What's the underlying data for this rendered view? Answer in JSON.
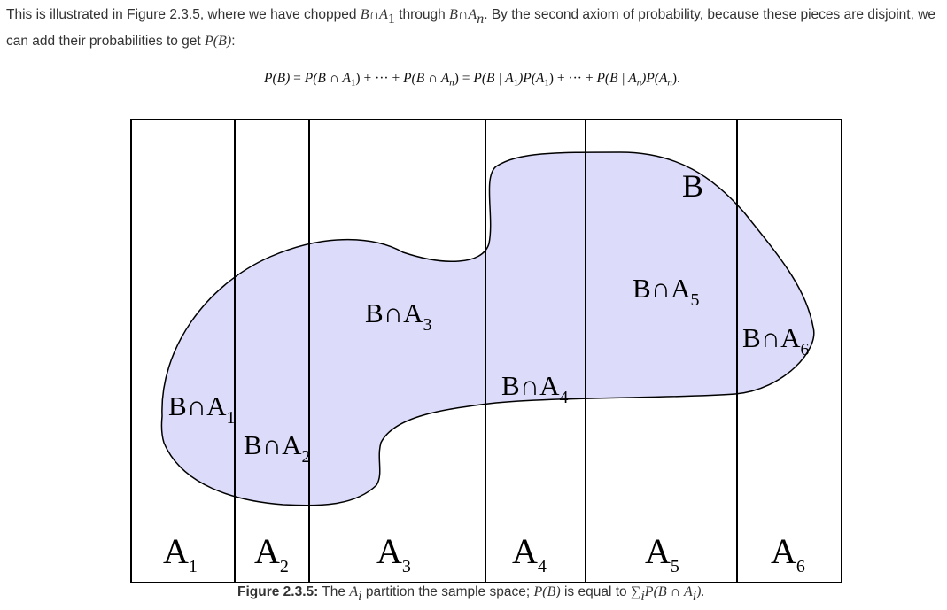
{
  "paragraph": {
    "t1": "This is illustrated in Figure 2.3.5, where we have chopped ",
    "b": "B",
    "cap": "∩",
    "a": "A",
    "sub1": "1",
    "t2": " through ",
    "subn": "n",
    "t3": ". By the second axiom of probability, because these pieces are disjoint, we can add their probabilities to get ",
    "pb": "P(B)",
    "t4": ":"
  },
  "equation": {
    "lhs": "P(B)",
    "eq": " = ",
    "p1": "P(B ∩ A",
    "sub1": "1",
    "close": ")",
    "plus_dots": " + ··· + ",
    "pn": "P(B ∩ A",
    "subn": "n",
    "eq2": " = ",
    "c1": "P(B | A",
    "c1b": ")P(A",
    "cn": "P(B | A",
    "cnb": ")P(A",
    "end": ")."
  },
  "figure": {
    "set_label": "B",
    "region_labels": [
      {
        "text": "B∩A",
        "sub": "1"
      },
      {
        "text": "B∩A",
        "sub": "2"
      },
      {
        "text": "B∩A",
        "sub": "3"
      },
      {
        "text": "B∩A",
        "sub": "4"
      },
      {
        "text": "B∩A",
        "sub": "5"
      },
      {
        "text": "B∩A",
        "sub": "6"
      }
    ],
    "partition_labels": [
      {
        "text": "A",
        "sub": "1"
      },
      {
        "text": "A",
        "sub": "2"
      },
      {
        "text": "A",
        "sub": "3"
      },
      {
        "text": "A",
        "sub": "4"
      },
      {
        "text": "A",
        "sub": "5"
      },
      {
        "text": "A",
        "sub": "6"
      }
    ],
    "fill_color": "#dcdcfa",
    "stroke_color": "#000000"
  },
  "caption": {
    "label": "Figure 2.3.5:",
    "t1": " The ",
    "a": "A",
    "subi": "i",
    "t2": " partition the sample space; ",
    "pb": "P(B)",
    "t3": " is equal to ",
    "sum": "∑",
    "sumsub": "i",
    "expr": "P(B ∩ A",
    "end": ")."
  }
}
